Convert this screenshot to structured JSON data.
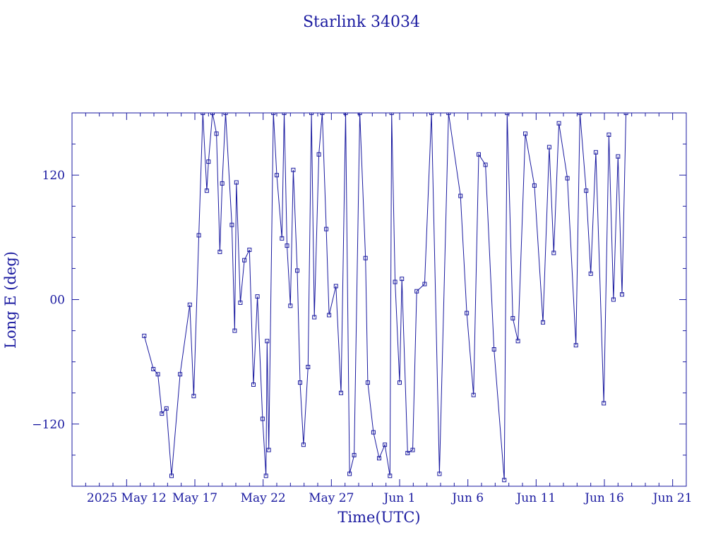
{
  "chart_data": {
    "type": "line",
    "title": "Starlink 34034",
    "xlabel": "Time(UTC)",
    "ylabel": "Long E (deg)",
    "x_ticks": [
      "2025 May 12",
      "May 17",
      "May 22",
      "May 27",
      "Jun  1",
      "Jun  6",
      "Jun 11",
      "Jun 16",
      "Jun 21"
    ],
    "x_tick_days": [
      0,
      5,
      10,
      15,
      20,
      25,
      30,
      35,
      40
    ],
    "xlim_days": [
      -4,
      41
    ],
    "y_ticks": [
      -120,
      0,
      120
    ],
    "y_tick_labels": [
      "−120",
      "00",
      "120"
    ],
    "ylim": [
      -180,
      180
    ],
    "colors": {
      "series": "#1a1aa0",
      "axes": "#1a1aa0"
    },
    "series": [
      {
        "values": [
          [
            "2025-05-13T07:00",
            -35
          ],
          [
            "2025-05-13T23:00",
            -67
          ],
          [
            "2025-05-14T07:00",
            -72
          ],
          [
            "2025-05-14T14:00",
            -110
          ],
          [
            "2025-05-14T22:00",
            -105
          ],
          [
            "2025-05-15T07:00",
            -170
          ],
          [
            "2025-05-15T22:00",
            -72
          ],
          [
            "2025-05-16T15:00",
            -5
          ],
          [
            "2025-05-16T22:00",
            -93
          ],
          [
            "2025-05-17T07:00",
            62
          ],
          [
            "2025-05-17T14:00",
            180
          ],
          [
            "2025-05-17T21:00",
            105
          ],
          [
            "2025-05-18T00:00",
            133
          ],
          [
            "2025-05-18T07:00",
            180
          ],
          [
            "2025-05-18T14:00",
            160
          ],
          [
            "2025-05-18T20:00",
            46
          ],
          [
            "2025-05-19T00:00",
            112
          ],
          [
            "2025-05-19T06:00",
            180
          ],
          [
            "2025-05-19T17:00",
            72
          ],
          [
            "2025-05-19T22:00",
            -30
          ],
          [
            "2025-05-20T01:00",
            113
          ],
          [
            "2025-05-20T08:00",
            -3
          ],
          [
            "2025-05-20T15:00",
            38
          ],
          [
            "2025-05-21T00:00",
            48
          ],
          [
            "2025-05-21T07:00",
            -82
          ],
          [
            "2025-05-21T14:00",
            3
          ],
          [
            "2025-05-21T23:00",
            -115
          ],
          [
            "2025-05-22T05:00",
            -170
          ],
          [
            "2025-05-22T07:00",
            -40
          ],
          [
            "2025-05-22T10:00",
            -145
          ],
          [
            "2025-05-22T18:00",
            180
          ],
          [
            "2025-05-23T00:00",
            120
          ],
          [
            "2025-05-23T09:00",
            59
          ],
          [
            "2025-05-23T13:00",
            180
          ],
          [
            "2025-05-23T18:00",
            52
          ],
          [
            "2025-05-24T00:00",
            -6
          ],
          [
            "2025-05-24T05:00",
            125
          ],
          [
            "2025-05-24T12:00",
            28
          ],
          [
            "2025-05-24T17:00",
            -80
          ],
          [
            "2025-05-24T23:00",
            -140
          ],
          [
            "2025-05-25T07:00",
            -65
          ],
          [
            "2025-05-25T13:00",
            180
          ],
          [
            "2025-05-25T18:00",
            -17
          ],
          [
            "2025-05-26T02:00",
            140
          ],
          [
            "2025-05-26T08:00",
            180
          ],
          [
            "2025-05-26T15:00",
            68
          ],
          [
            "2025-05-26T20:00",
            -15
          ],
          [
            "2025-05-27T08:00",
            13
          ],
          [
            "2025-05-27T17:00",
            -90
          ],
          [
            "2025-05-28T01:00",
            180
          ],
          [
            "2025-05-28T08:00",
            -168
          ],
          [
            "2025-05-28T16:00",
            -150
          ],
          [
            "2025-05-29T02:00",
            180
          ],
          [
            "2025-05-29T12:00",
            40
          ],
          [
            "2025-05-29T16:00",
            -80
          ],
          [
            "2025-05-30T02:00",
            -128
          ],
          [
            "2025-05-30T12:00",
            -153
          ],
          [
            "2025-05-30T22:00",
            -140
          ],
          [
            "2025-05-31T07:00",
            -170
          ],
          [
            "2025-05-31T10:00",
            180
          ],
          [
            "2025-05-31T16:00",
            17
          ],
          [
            "2025-06-01T00:00",
            -80
          ],
          [
            "2025-06-01T04:00",
            20
          ],
          [
            "2025-06-01T14:00",
            -148
          ],
          [
            "2025-06-01T23:00",
            -145
          ],
          [
            "2025-06-02T06:00",
            8
          ],
          [
            "2025-06-02T20:00",
            15
          ],
          [
            "2025-06-03T08:00",
            180
          ],
          [
            "2025-06-03T22:00",
            -168
          ],
          [
            "2025-06-04T14:00",
            180
          ],
          [
            "2025-06-05T11:00",
            100
          ],
          [
            "2025-06-05T22:00",
            -13
          ],
          [
            "2025-06-06T10:00",
            -92
          ],
          [
            "2025-06-06T19:00",
            140
          ],
          [
            "2025-06-07T07:00",
            130
          ],
          [
            "2025-06-07T22:00",
            -48
          ],
          [
            "2025-06-08T16:00",
            -174
          ],
          [
            "2025-06-08T21:00",
            180
          ],
          [
            "2025-06-09T07:00",
            -18
          ],
          [
            "2025-06-09T16:00",
            -40
          ],
          [
            "2025-06-10T05:00",
            160
          ],
          [
            "2025-06-10T21:00",
            110
          ],
          [
            "2025-06-11T12:00",
            -22
          ],
          [
            "2025-06-11T23:00",
            147
          ],
          [
            "2025-06-12T07:00",
            45
          ],
          [
            "2025-06-12T16:00",
            170
          ],
          [
            "2025-06-13T07:00",
            117
          ],
          [
            "2025-06-13T22:00",
            -44
          ],
          [
            "2025-06-14T05:00",
            180
          ],
          [
            "2025-06-14T16:00",
            105
          ],
          [
            "2025-06-15T00:00",
            25
          ],
          [
            "2025-06-15T09:00",
            142
          ],
          [
            "2025-06-15T23:00",
            -100
          ],
          [
            "2025-06-16T08:00",
            159
          ],
          [
            "2025-06-16T16:00",
            0
          ],
          [
            "2025-06-17T00:00",
            138
          ],
          [
            "2025-06-17T07:00",
            5
          ],
          [
            "2025-06-17T14:00",
            180
          ]
        ]
      }
    ],
    "grid": false,
    "legend": "none"
  }
}
